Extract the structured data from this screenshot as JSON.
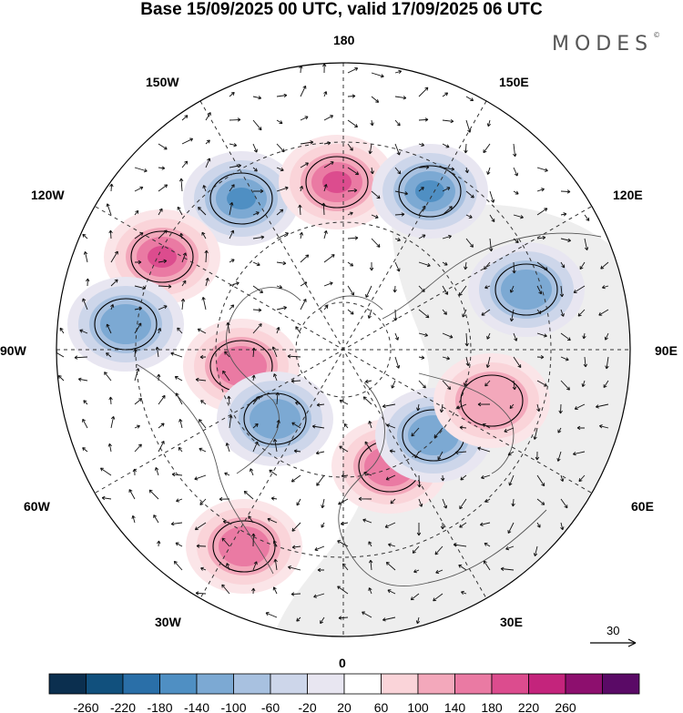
{
  "title": "Base 15/09/2025 00 UTC, valid 17/09/2025 06 UTC",
  "brand": "MODES",
  "brand_mark": "©",
  "longitude_labels": {
    "top": "180",
    "top_left": "150W",
    "top_right": "150E",
    "upper_left": "120W",
    "upper_right": "120E",
    "left": "90W",
    "right": "90E",
    "lower_left": "60W",
    "lower_right": "60E",
    "bottom_left": "30W",
    "bottom_right": "30E",
    "bottom": "0"
  },
  "reference_vector": {
    "label": "30"
  },
  "colorbar": {
    "ticks": [
      "-260",
      "-220",
      "-180",
      "-140",
      "-100",
      "-60",
      "-20",
      "20",
      "60",
      "100",
      "140",
      "180",
      "220",
      "260"
    ],
    "colors": [
      "#0b2f4f",
      "#11507d",
      "#2a6fa8",
      "#4f8fc3",
      "#7ca9d3",
      "#a8c1e0",
      "#cdd6ea",
      "#e8e6f1",
      "#ffffff",
      "#fad4d9",
      "#f3a8bb",
      "#ea7aa3",
      "#dc4c8e",
      "#c4247c",
      "#8d0f6e",
      "#5a0a66"
    ]
  },
  "anomalies": [
    {
      "sign": "neg",
      "level": 4
    },
    {
      "sign": "pos",
      "level": 4
    },
    {
      "sign": "neg",
      "level": 3
    },
    {
      "sign": "pos",
      "level": 3
    },
    {
      "sign": "neg",
      "level": 2
    },
    {
      "sign": "pos",
      "level": 2
    },
    {
      "sign": "neg",
      "level": 2
    },
    {
      "sign": "pos",
      "level": 2
    },
    {
      "sign": "neg",
      "level": 2
    },
    {
      "sign": "pos",
      "level": 2
    },
    {
      "sign": "neg",
      "level": 2
    },
    {
      "sign": "pos",
      "level": 1
    }
  ]
}
